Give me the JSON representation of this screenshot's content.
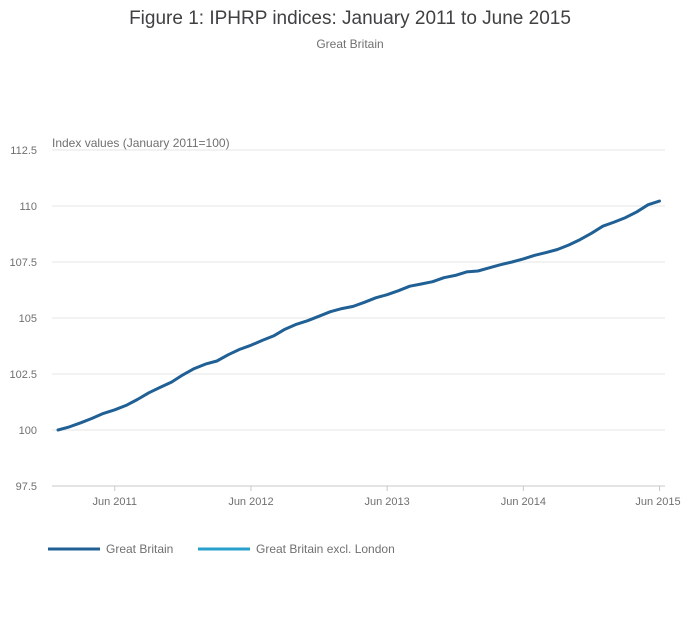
{
  "chart_data": {
    "type": "line",
    "title": "Figure 1: IPHRP indices: January 2011 to June 2015",
    "subtitle": "Great Britain",
    "ylabel": "Index values (January 2011=100)",
    "xlabel": "",
    "ylim": [
      97.5,
      112.5
    ],
    "yticks": [
      "112.5",
      "110",
      "107.5",
      "105",
      "102.5",
      "100",
      "97.5"
    ],
    "xticks": [
      {
        "label": "Jun 2011",
        "month": 5
      },
      {
        "label": "Jun 2012",
        "month": 17
      },
      {
        "label": "Jun 2013",
        "month": 29
      },
      {
        "label": "Jun 2014",
        "month": 41
      },
      {
        "label": "Jun 2015",
        "month": 53
      }
    ],
    "x_start": "Jan 2011",
    "x_end": "Jun 2015",
    "grid": true,
    "legend_position": "bottom-left",
    "series": [
      {
        "name": "Great Britain",
        "color": "#206095",
        "values": [
          100.0,
          100.14,
          100.32,
          100.52,
          100.74,
          100.9,
          101.1,
          101.36,
          101.66,
          101.9,
          102.14,
          102.46,
          102.74,
          102.94,
          103.08,
          103.36,
          103.6,
          103.78,
          104.0,
          104.2,
          104.5,
          104.72,
          104.88,
          105.08,
          105.28,
          105.42,
          105.52,
          105.7,
          105.9,
          106.04,
          106.22,
          106.42,
          106.52,
          106.62,
          106.8,
          106.9,
          107.06,
          107.1,
          107.24,
          107.38,
          107.5,
          107.64,
          107.8,
          107.92,
          108.06,
          108.26,
          108.5,
          108.78,
          109.1,
          109.28,
          109.48,
          109.74,
          110.06,
          110.22
        ]
      },
      {
        "name": "Great Britain excl. London",
        "color": "#27a0cc",
        "values": []
      }
    ]
  }
}
